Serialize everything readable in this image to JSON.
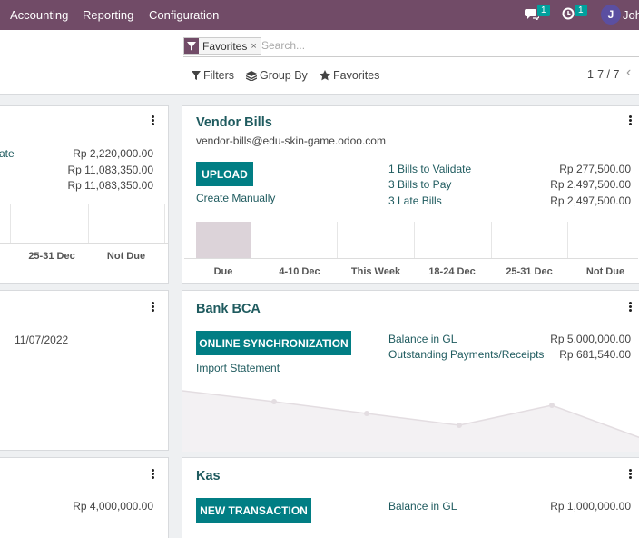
{
  "navbar": {
    "menus": [
      "Accounting",
      "Reporting",
      "Configuration"
    ],
    "chat_count": "1",
    "activity_count": "1",
    "user_initial": "J",
    "user_name": "John"
  },
  "search": {
    "facet_label": "Favorites",
    "facet_remove": "×",
    "placeholder": "Search..."
  },
  "toolbar": {
    "filters": "Filters",
    "group_by": "Group By",
    "favorites": "Favorites",
    "pager": "1-7 / 7",
    "prev": "‹"
  },
  "left_column": {
    "card1": {
      "line1_label": "ate",
      "amounts": [
        "Rp 2,220,000.00",
        "Rp 11,083,350.00",
        "Rp 11,083,350.00"
      ],
      "axis": [
        "25-31 Dec",
        "Not Due"
      ]
    },
    "card2": {
      "date": "11/07/2022"
    },
    "card3": {
      "amount": "Rp 4,000,000.00"
    }
  },
  "vendor_bills": {
    "title": "Vendor Bills",
    "email": "vendor-bills@edu-skin-game.odoo.com",
    "upload_label": "UPLOAD",
    "create_manually": "Create Manually",
    "lines": [
      {
        "label": "1 Bills to Validate",
        "amount": "Rp 277,500.00"
      },
      {
        "label": "3 Bills to Pay",
        "amount": "Rp 2,497,500.00"
      },
      {
        "label": "3 Late Bills",
        "amount": "Rp 2,497,500.00"
      }
    ],
    "chart_axis": [
      "Due",
      "4-10 Dec",
      "This Week",
      "18-24 Dec",
      "25-31 Dec",
      "Not Due"
    ]
  },
  "bank_bca": {
    "title": "Bank BCA",
    "sync_label": "ONLINE SYNCHRONIZATION",
    "import_statement": "Import Statement",
    "lines": [
      {
        "label": "Balance in GL",
        "amount": "Rp 5,000,000.00"
      },
      {
        "label": "Outstanding Payments/Receipts",
        "amount": "Rp 681,540.00"
      }
    ]
  },
  "kas": {
    "title": "Kas",
    "new_transaction_label": "NEW TRANSACTION",
    "lines": [
      {
        "label": "Balance in GL",
        "amount": "Rp 1,000,000.00"
      }
    ]
  },
  "colors": {
    "brand": "#714b67",
    "accent": "#017e84",
    "title": "#1f5b5f"
  }
}
